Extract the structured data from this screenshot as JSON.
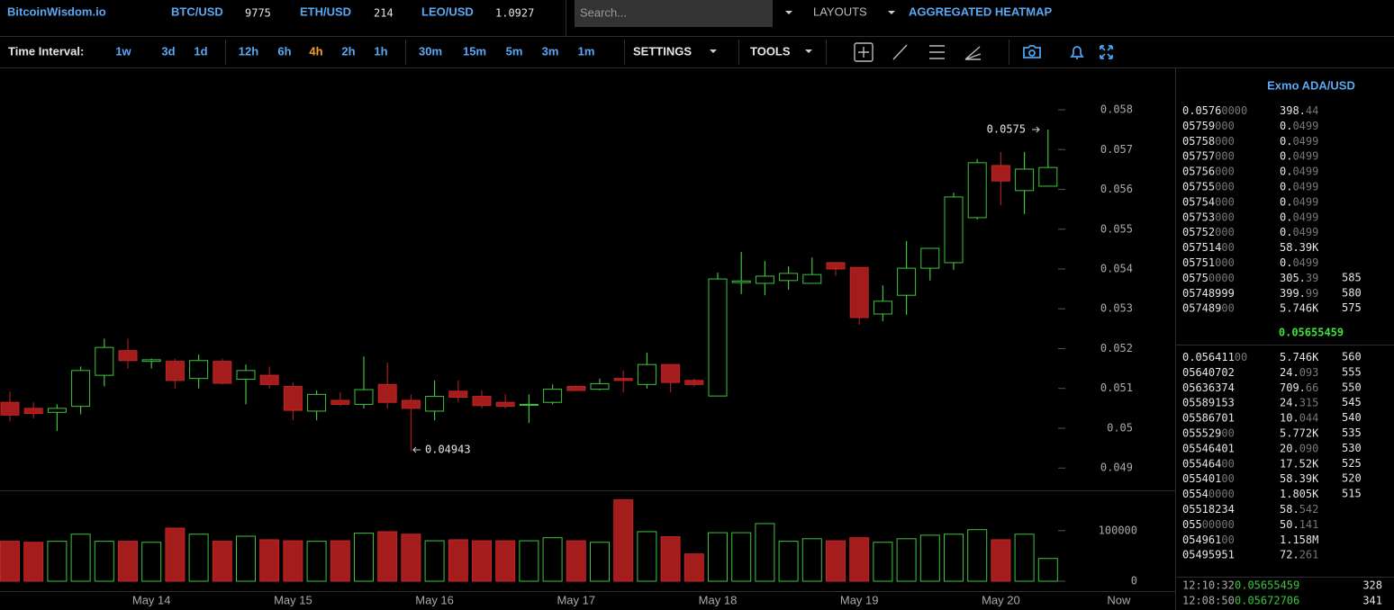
{
  "header": {
    "brand": "BitcoinWisdom.io",
    "tickers": [
      {
        "pair": "BTC/USD",
        "price": "9775"
      },
      {
        "pair": "ETH/USD",
        "price": "214"
      },
      {
        "pair": "LEO/USD",
        "price": "1.0927"
      }
    ],
    "search_placeholder": "Search...",
    "layouts": "LAYOUTS",
    "heatmap": "AGGREGATED HEATMAP"
  },
  "toolbar": {
    "label": "Time Interval:",
    "intervals": [
      "1w",
      "3d",
      "1d",
      "12h",
      "6h",
      "4h",
      "2h",
      "1h",
      "30m",
      "15m",
      "5m",
      "3m",
      "1m"
    ],
    "active_interval": 5,
    "settings": "SETTINGS",
    "tools": "TOOLS"
  },
  "chart_data": {
    "type": "candlestick",
    "categories": [
      null,
      null,
      null,
      null,
      null,
      null,
      "May 14",
      null,
      null,
      null,
      null,
      null,
      "May 15",
      null,
      null,
      null,
      null,
      null,
      "May 16",
      null,
      null,
      null,
      null,
      null,
      "May 17",
      null,
      null,
      null,
      null,
      null,
      "May 18",
      null,
      null,
      null,
      null,
      null,
      "May 19",
      null,
      null,
      null,
      null,
      null,
      "May 20",
      null,
      null,
      null,
      null,
      "Now"
    ],
    "open": [
      0.05065,
      0.0505,
      0.0504,
      0.05055,
      0.05133,
      0.05195,
      0.05168,
      0.05168,
      0.05125,
      0.05168,
      0.05123,
      0.05133,
      0.05105,
      0.05043,
      0.0507,
      0.0506,
      0.0511,
      0.0507,
      0.05043,
      0.05093,
      0.0508,
      0.05065,
      0.05058,
      0.05065,
      0.05105,
      0.05098,
      0.05125,
      0.0511,
      0.0516,
      0.0512,
      0.05081,
      0.05366,
      0.05364,
      0.05371,
      0.05364,
      0.05416,
      0.05404,
      0.05287,
      0.05334,
      0.05402,
      0.05416,
      0.05529,
      0.0566,
      0.05597,
      0.05608,
      null,
      null,
      null
    ],
    "high": [
      0.05092,
      0.05065,
      0.0506,
      0.05155,
      0.05225,
      0.05225,
      0.05175,
      0.05175,
      0.05185,
      0.05175,
      0.0516,
      0.05155,
      0.05115,
      0.05095,
      0.0509,
      0.0518,
      0.05165,
      0.05085,
      0.0512,
      0.0512,
      0.05095,
      0.05085,
      0.05085,
      0.0511,
      0.05108,
      0.05125,
      0.05145,
      0.0519,
      0.0516,
      0.05125,
      0.05391,
      0.05443,
      0.0542,
      0.05407,
      0.05429,
      0.05416,
      0.05404,
      0.05359,
      0.0547,
      0.05452,
      0.05592,
      0.05676,
      0.05694,
      0.05694,
      0.0575,
      null,
      null,
      null
    ],
    "low": [
      0.05017,
      0.05025,
      0.04993,
      0.05035,
      0.05105,
      0.0515,
      0.0515,
      0.051,
      0.051,
      0.0511,
      0.0506,
      0.051,
      0.0502,
      0.0502,
      0.05055,
      0.0505,
      0.0505,
      0.04943,
      0.0502,
      0.05065,
      0.0505,
      0.0505,
      0.05013,
      0.0506,
      0.05093,
      0.05095,
      0.0509,
      0.051,
      0.0509,
      0.05105,
      0.05081,
      0.05337,
      0.05334,
      0.05348,
      0.05364,
      0.05382,
      0.0526,
      0.05269,
      0.05285,
      0.05371,
      0.05398,
      0.05524,
      0.0556,
      0.05538,
      0.05608,
      null,
      null,
      null
    ],
    "close": [
      0.05033,
      0.05037,
      0.0505,
      0.05145,
      0.05203,
      0.0517,
      0.05172,
      0.0512,
      0.0517,
      0.05113,
      0.05145,
      0.0511,
      0.05045,
      0.05085,
      0.0506,
      0.05097,
      0.05065,
      0.0505,
      0.0508,
      0.05078,
      0.05057,
      0.05055,
      0.0506,
      0.05098,
      0.05095,
      0.05112,
      0.0512,
      0.0516,
      0.05115,
      0.0511,
      0.05375,
      0.0537,
      0.05382,
      0.05389,
      0.05386,
      0.054,
      0.05278,
      0.05319,
      0.05402,
      0.05452,
      0.05581,
      0.05667,
      0.05621,
      0.05651,
      0.05655,
      null,
      null,
      null
    ],
    "volume": [
      79000,
      77000,
      79000,
      93000,
      79000,
      79000,
      77000,
      105000,
      93000,
      79000,
      89000,
      82000,
      80000,
      79000,
      80000,
      95000,
      98000,
      93000,
      80000,
      82000,
      80000,
      80000,
      80000,
      86000,
      80000,
      77000,
      161000,
      98000,
      88000,
      54000,
      96000,
      96000,
      114000,
      79000,
      84000,
      80000,
      86000,
      77000,
      84000,
      91000,
      93000,
      102000,
      82000,
      93000,
      45000,
      null,
      null,
      null
    ],
    "up_color": "#3fc33f",
    "down_color": "#a51c1c",
    "ylim": [
      0.04844,
      0.05904
    ],
    "yticks": [
      0.049,
      0.05,
      0.051,
      0.052,
      0.053,
      0.054,
      0.055,
      0.056,
      0.057,
      0.058
    ],
    "volume_lim": [
      0,
      178000
    ],
    "volume_ticks": [
      0,
      100000
    ],
    "high_label": "0.0575",
    "low_label": "0.04943"
  },
  "order_book": {
    "title": "Exmo ADA/USD",
    "asks": [
      {
        "price": [
          "0.0576",
          "0000"
        ],
        "amount": [
          "398.",
          "44"
        ]
      },
      {
        "price": [
          "05759",
          "000"
        ],
        "amount": [
          "0.",
          "0499"
        ]
      },
      {
        "price": [
          "05758",
          "000"
        ],
        "amount": [
          "0.",
          "0499"
        ]
      },
      {
        "price": [
          "05757",
          "000"
        ],
        "amount": [
          "0.",
          "0499"
        ]
      },
      {
        "price": [
          "05756",
          "000"
        ],
        "amount": [
          "0.",
          "0499"
        ]
      },
      {
        "price": [
          "05755",
          "000"
        ],
        "amount": [
          "0.",
          "0499"
        ]
      },
      {
        "price": [
          "05754",
          "000"
        ],
        "amount": [
          "0.",
          "0499"
        ]
      },
      {
        "price": [
          "05753",
          "000"
        ],
        "amount": [
          "0.",
          "0499"
        ]
      },
      {
        "price": [
          "05752",
          "000"
        ],
        "amount": [
          "0.",
          "0499"
        ]
      },
      {
        "price": [
          "057514",
          "00"
        ],
        "amount": [
          "58.39K"
        ]
      },
      {
        "price": [
          "05751",
          "000"
        ],
        "amount": [
          "0.",
          "0499"
        ]
      },
      {
        "price": [
          "0575",
          "0000"
        ],
        "amount": [
          "305.",
          "39"
        ],
        "depth": 585
      },
      {
        "price": [
          "05748999"
        ],
        "amount": [
          "399.",
          "99"
        ],
        "depth": 580
      },
      {
        "price": [
          "057489",
          "00"
        ],
        "amount": [
          "5.746K"
        ],
        "depth": 575
      }
    ],
    "last_price": "0.05655459",
    "bids": [
      {
        "price": [
          "0.056411",
          "00"
        ],
        "amount": [
          "5.746K"
        ],
        "depth": 560
      },
      {
        "price": [
          "05640702"
        ],
        "amount": [
          "24.",
          "093"
        ],
        "depth": 555
      },
      {
        "price": [
          "05636374"
        ],
        "amount": [
          "709.",
          "66"
        ],
        "depth": 550
      },
      {
        "price": [
          "05589153"
        ],
        "amount": [
          "24.",
          "315"
        ],
        "depth": 545
      },
      {
        "price": [
          "05586701"
        ],
        "amount": [
          "10.",
          "044"
        ],
        "depth": 540
      },
      {
        "price": [
          "055529",
          "00"
        ],
        "amount": [
          "5.772K"
        ],
        "depth": 535
      },
      {
        "price": [
          "05546401"
        ],
        "amount": [
          "20.",
          "090"
        ],
        "depth": 530
      },
      {
        "price": [
          "055464",
          "00"
        ],
        "amount": [
          "17.52K"
        ],
        "depth": 525
      },
      {
        "price": [
          "055401",
          "00"
        ],
        "amount": [
          "58.39K"
        ],
        "depth": 520
      },
      {
        "price": [
          "0554",
          "0000"
        ],
        "amount": [
          "1.805K"
        ],
        "depth": 515
      },
      {
        "price": [
          "05518234"
        ],
        "amount": [
          "58.",
          "542"
        ]
      },
      {
        "price": [
          "055",
          "00000"
        ],
        "amount": [
          "50.",
          "141"
        ]
      },
      {
        "price": [
          "054961",
          "00"
        ],
        "amount": [
          "1.158M"
        ]
      },
      {
        "price": [
          "05495951"
        ],
        "amount": [
          "72.",
          "261"
        ]
      }
    ],
    "trades": [
      {
        "time": "12:10:32",
        "price": "0.05655459",
        "amount": 328
      },
      {
        "time": "12:08:50",
        "price": "0.05672706",
        "amount": 341
      }
    ]
  }
}
